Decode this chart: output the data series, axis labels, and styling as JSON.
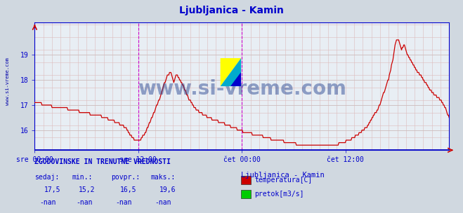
{
  "title": "Ljubljanica - Kamin",
  "title_color": "#0000cc",
  "bg_color": "#d0d8e0",
  "plot_bg_color": "#e8eef4",
  "line_color": "#cc0000",
  "watermark": "www.si-vreme.com",
  "watermark_color": "#1a3a8a",
  "x_tick_labels": [
    "sre 00:00",
    "sre 12:00",
    "čet 00:00",
    "čet 12:00"
  ],
  "x_tick_positions": [
    0.0,
    0.25,
    0.5,
    0.75
  ],
  "y_ticks": [
    16,
    17,
    18,
    19
  ],
  "ylim_min": 15.2,
  "ylim_max": 20.3,
  "xlim": [
    0.0,
    1.0
  ],
  "vline_positions": [
    0.25,
    0.5
  ],
  "bottom_text_header": "ZGODOVINSKE IN TRENUTNE VREDNOSTI",
  "bottom_cols": [
    "sedaj:",
    "min.:",
    "povpr.:",
    "maks.:"
  ],
  "bottom_row1": [
    "17,5",
    "15,2",
    "16,5",
    "19,6"
  ],
  "bottom_row2": [
    "-nan",
    "-nan",
    "-nan",
    "-nan"
  ],
  "legend_title": "Ljubljanica - Kamin",
  "legend_items": [
    {
      "label": "temperatura[C]",
      "color": "#cc0000"
    },
    {
      "label": "pretok[m3/s]",
      "color": "#00cc00"
    }
  ],
  "text_color": "#0000cc",
  "axis_color": "#0000cc",
  "sidebar_text": "www.si-vreme.com",
  "sidebar_color": "#0000aa",
  "logo_colors": [
    "#ffff00",
    "#00aacc",
    "#0000cc"
  ]
}
